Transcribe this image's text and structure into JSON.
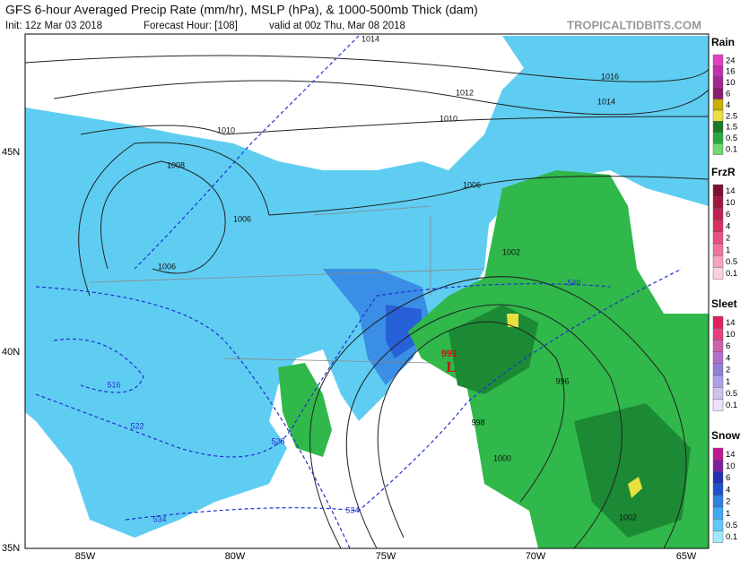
{
  "header": {
    "title": "GFS 6-hour Averaged Precip Rate (mm/hr), MSLP (hPa), & 1000-500mb Thick (dam)",
    "init": "Init: 12z Mar 03 2018",
    "forecast_hour": "Forecast Hour: [108]",
    "valid": "valid at 00z Thu, Mar 08 2018",
    "credit": "TROPICALTIDBITS.COM"
  },
  "axes": {
    "longitudes": [
      "85W",
      "80W",
      "75W",
      "70W",
      "65W"
    ],
    "latitudes": [
      "45N",
      "40N",
      "35N"
    ]
  },
  "legend": [
    {
      "title": "Rain",
      "labels": [
        "24",
        "16",
        "10",
        "6",
        "4",
        "2.5",
        "1.5",
        "0.5",
        "0.1"
      ],
      "colors": [
        "#e040c0",
        "#c030b0",
        "#a02a90",
        "#8a1a70",
        "#c8b000",
        "#e8e040",
        "#1a7a2a",
        "#2aa840",
        "#70d870"
      ]
    },
    {
      "title": "FrzR",
      "labels": [
        "14",
        "10",
        "6",
        "4",
        "2",
        "1",
        "0.5",
        "0.1"
      ],
      "colors": [
        "#801030",
        "#a01840",
        "#c02050",
        "#d83060",
        "#e85080",
        "#f070a0",
        "#f8a0c0",
        "#fcd0e0"
      ]
    },
    {
      "title": "Sleet",
      "labels": [
        "14",
        "10",
        "6",
        "4",
        "2",
        "1",
        "0.5",
        "0.1"
      ],
      "colors": [
        "#e02060",
        "#e84080",
        "#d060b0",
        "#b070c8",
        "#9080d8",
        "#b0a0e8",
        "#d0c0f0",
        "#ece0fa"
      ]
    },
    {
      "title": "Snow",
      "labels": [
        "14",
        "10",
        "6",
        "4",
        "2",
        "1",
        "0.5",
        "0.1"
      ],
      "colors": [
        "#c01890",
        "#8020a0",
        "#2030b0",
        "#2050d0",
        "#3080e0",
        "#40a8f0",
        "#60c8f8",
        "#a0e8fc"
      ]
    }
  ],
  "contours": {
    "pressure": [
      "1014",
      "1016",
      "1014",
      "1012",
      "1010",
      "1010",
      "1008",
      "1006",
      "1006",
      "1006",
      "1002",
      "996",
      "998",
      "1000",
      "1002"
    ],
    "thickness": [
      "540",
      "534",
      "528",
      "522",
      "516",
      "534"
    ],
    "low": {
      "pressure": "991",
      "symbol": "L"
    }
  }
}
